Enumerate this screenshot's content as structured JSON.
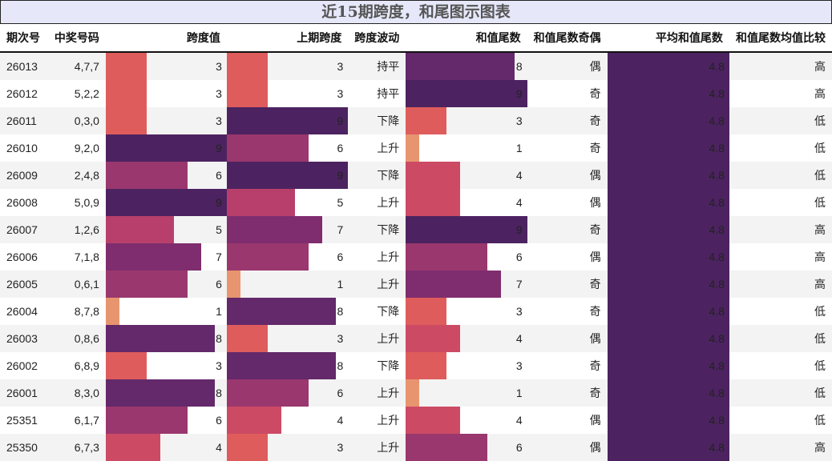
{
  "title": "近15期跨度，和尾图示图表",
  "headers": [
    "期次号",
    "中奖号码",
    "跨度值",
    "上期跨度",
    "跨度波动",
    "和值尾数",
    "和值尾数奇偶",
    "平均和值尾数",
    "和值尾数均值比较"
  ],
  "colors": {
    "1": "#e8956f",
    "3": "#df5c5c",
    "4": "#cc4a64",
    "5": "#b83f6b",
    "6": "#9a376e",
    "7": "#7f2d6e",
    "8": "#63296a",
    "9": "#4c2360",
    "avg": "#4c2360",
    "title_bg": "#e6e8fa",
    "row_alt": "#f3f3f3"
  },
  "rows": [
    {
      "issue": "26013",
      "numbers": "4,7,7",
      "span": "3",
      "prev_span": "3",
      "trend": "持平",
      "tail": "8",
      "parity": "偶",
      "avg": "4.8",
      "compare": "高"
    },
    {
      "issue": "26012",
      "numbers": "5,2,2",
      "span": "3",
      "prev_span": "3",
      "trend": "持平",
      "tail": "9",
      "parity": "奇",
      "avg": "4.8",
      "compare": "高"
    },
    {
      "issue": "26011",
      "numbers": "0,3,0",
      "span": "3",
      "prev_span": "9",
      "trend": "下降",
      "tail": "3",
      "parity": "奇",
      "avg": "4.8",
      "compare": "低"
    },
    {
      "issue": "26010",
      "numbers": "9,2,0",
      "span": "9",
      "prev_span": "6",
      "trend": "上升",
      "tail": "1",
      "parity": "奇",
      "avg": "4.8",
      "compare": "低"
    },
    {
      "issue": "26009",
      "numbers": "2,4,8",
      "span": "6",
      "prev_span": "9",
      "trend": "下降",
      "tail": "4",
      "parity": "偶",
      "avg": "4.8",
      "compare": "低"
    },
    {
      "issue": "26008",
      "numbers": "5,0,9",
      "span": "9",
      "prev_span": "5",
      "trend": "上升",
      "tail": "4",
      "parity": "偶",
      "avg": "4.8",
      "compare": "低"
    },
    {
      "issue": "26007",
      "numbers": "1,2,6",
      "span": "5",
      "prev_span": "7",
      "trend": "下降",
      "tail": "9",
      "parity": "奇",
      "avg": "4.8",
      "compare": "高"
    },
    {
      "issue": "26006",
      "numbers": "7,1,8",
      "span": "7",
      "prev_span": "6",
      "trend": "上升",
      "tail": "6",
      "parity": "偶",
      "avg": "4.8",
      "compare": "高"
    },
    {
      "issue": "26005",
      "numbers": "0,6,1",
      "span": "6",
      "prev_span": "1",
      "trend": "上升",
      "tail": "7",
      "parity": "奇",
      "avg": "4.8",
      "compare": "高"
    },
    {
      "issue": "26004",
      "numbers": "8,7,8",
      "span": "1",
      "prev_span": "8",
      "trend": "下降",
      "tail": "3",
      "parity": "奇",
      "avg": "4.8",
      "compare": "低"
    },
    {
      "issue": "26003",
      "numbers": "0,8,6",
      "span": "8",
      "prev_span": "3",
      "trend": "上升",
      "tail": "4",
      "parity": "偶",
      "avg": "4.8",
      "compare": "低"
    },
    {
      "issue": "26002",
      "numbers": "6,8,9",
      "span": "3",
      "prev_span": "8",
      "trend": "下降",
      "tail": "3",
      "parity": "奇",
      "avg": "4.8",
      "compare": "低"
    },
    {
      "issue": "26001",
      "numbers": "8,3,0",
      "span": "8",
      "prev_span": "6",
      "trend": "上升",
      "tail": "1",
      "parity": "奇",
      "avg": "4.8",
      "compare": "低"
    },
    {
      "issue": "25351",
      "numbers": "6,1,7",
      "span": "6",
      "prev_span": "4",
      "trend": "上升",
      "tail": "4",
      "parity": "偶",
      "avg": "4.8",
      "compare": "低"
    },
    {
      "issue": "25350",
      "numbers": "6,7,3",
      "span": "4",
      "prev_span": "3",
      "trend": "上升",
      "tail": "6",
      "parity": "偶",
      "avg": "4.8",
      "compare": "高"
    }
  ]
}
